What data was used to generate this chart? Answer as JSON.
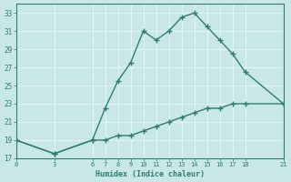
{
  "xlabel": "Humidex (Indice chaleur)",
  "line1_x": [
    0,
    3,
    6,
    7,
    8,
    9,
    10,
    11,
    12,
    13,
    14,
    15,
    16,
    17,
    18,
    21
  ],
  "line1_y": [
    19,
    17.5,
    19,
    22.5,
    25.5,
    27.5,
    31,
    30,
    31,
    32.5,
    33,
    31.5,
    30,
    28.5,
    26.5,
    23
  ],
  "line2_x": [
    0,
    3,
    6,
    7,
    8,
    9,
    10,
    11,
    12,
    13,
    14,
    15,
    16,
    17,
    18,
    21
  ],
  "line2_y": [
    19,
    17.5,
    19,
    19,
    19.5,
    19.5,
    20,
    20.5,
    21,
    21.5,
    22,
    22.5,
    22.5,
    23,
    23,
    23
  ],
  "line_color": "#2e7d6e",
  "bg_color": "#c8e8e8",
  "grid_color": "#e8f8f8",
  "xlim": [
    0,
    21
  ],
  "ylim": [
    17,
    34
  ],
  "yticks": [
    17,
    19,
    21,
    23,
    25,
    27,
    29,
    31,
    33
  ],
  "xticks": [
    0,
    3,
    6,
    7,
    8,
    9,
    10,
    11,
    12,
    13,
    14,
    15,
    16,
    17,
    18,
    21
  ],
  "marker": "+",
  "markersize": 4,
  "linewidth": 1.0
}
